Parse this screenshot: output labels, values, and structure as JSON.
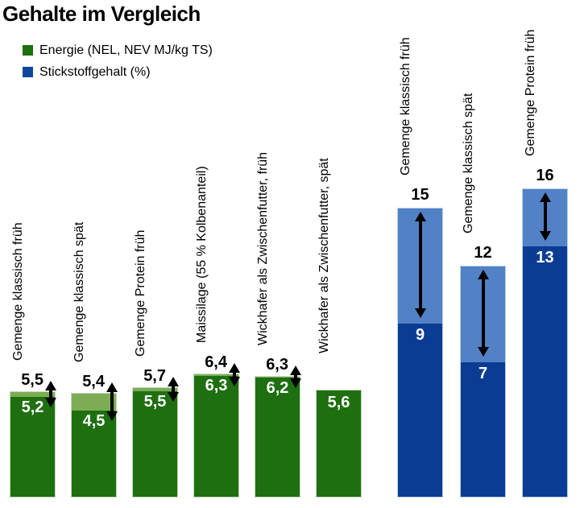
{
  "title": "Gehalte im Vergleich",
  "legend": [
    {
      "label": "Energie (NEL, NEV MJ/kg TS)",
      "color": "#1e6f10"
    },
    {
      "label": "Stickstoffgehalt (%)",
      "color": "#11459c"
    }
  ],
  "chart_data": {
    "type": "bar",
    "title": "Gehalte im Vergleich",
    "orientation": "vertical",
    "axes": "none (values shown as data labels, common hidden scale starting at 0)",
    "legend_position": "top-left",
    "range_marker": "black double-headed arrow spanning the light segment between min and max",
    "groups": [
      {
        "name": "Energie (NEL, NEV MJ/kg TS)",
        "color_main": "#1e6f10",
        "color_range": "#7cad55",
        "bars": [
          {
            "label": "Gemenge klassisch früh",
            "max": 5.5,
            "max_label": "5,5",
            "min": 5.2,
            "min_label": "5,2"
          },
          {
            "label": "Gemenge klassisch spät",
            "max": 5.4,
            "max_label": "5,4",
            "min": 4.5,
            "min_label": "4,5"
          },
          {
            "label": "Gemenge Protein früh",
            "max": 5.7,
            "max_label": "5,7",
            "min": 5.5,
            "min_label": "5,5"
          },
          {
            "label": "Maissilage (55 % Kolbenanteil)",
            "max": 6.4,
            "max_label": "6,4",
            "min": 6.3,
            "min_label": "6,3"
          },
          {
            "label": "Wickhafer als Zwischenfutter, früh",
            "max": 6.3,
            "max_label": "6,3",
            "min": 6.2,
            "min_label": "6,2"
          },
          {
            "label": "Wickhafer als Zwischenfutter, spät",
            "value": 5.6,
            "value_label": "5,6"
          }
        ]
      },
      {
        "name": "Stickstoffgehalt (%)",
        "color_main": "#0b3c94",
        "color_range": "#5282c5",
        "bars": [
          {
            "label": "Gemenge klassisch früh",
            "max": 15,
            "max_label": "15",
            "min": 9,
            "min_label": "9"
          },
          {
            "label": "Gemenge klassisch spät",
            "max": 12,
            "max_label": "12",
            "min": 7,
            "min_label": "7"
          },
          {
            "label": "Gemenge Protein früh",
            "max": 16,
            "max_label": "16",
            "min": 13,
            "min_label": "13"
          }
        ]
      }
    ]
  }
}
